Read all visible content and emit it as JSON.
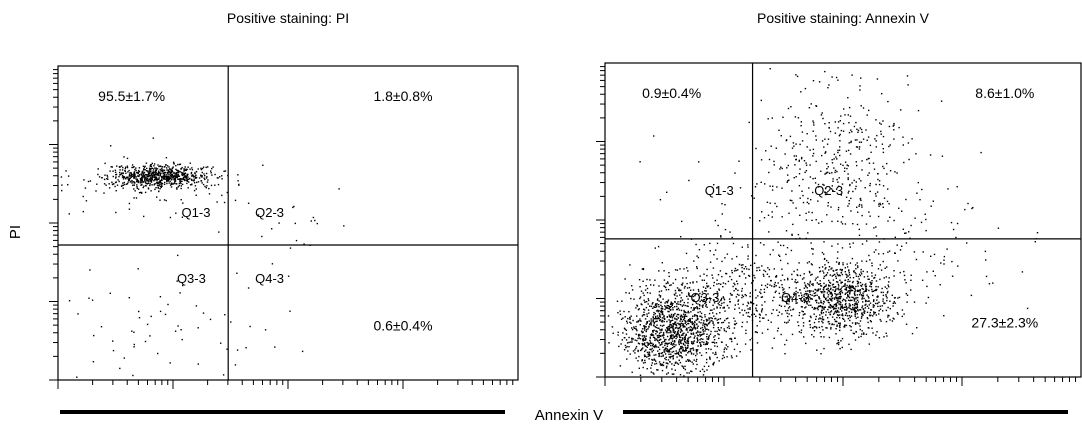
{
  "figure": {
    "ylabel": "PI",
    "xlabel": "Annexin V"
  },
  "colors": {
    "ink": "#000000",
    "background": "#ffffff"
  },
  "chart_data": [
    {
      "type": "scatter",
      "title": "Positive staining: PI",
      "xlabel": "Annexin V",
      "ylabel": "PI",
      "xlim": [
        0,
        1
      ],
      "ylim": [
        0,
        1
      ],
      "log_scale": true,
      "grid": false,
      "gate": {
        "x": 0.37,
        "y": 0.43
      },
      "quadrant_labels": [
        {
          "name": "Q1-3",
          "x": 0.3,
          "y": 0.53
        },
        {
          "name": "Q2-3",
          "x": 0.46,
          "y": 0.53
        },
        {
          "name": "Q3-3",
          "x": 0.29,
          "y": 0.32
        },
        {
          "name": "Q4-3",
          "x": 0.46,
          "y": 0.32
        }
      ],
      "annotations": [
        {
          "text": "95.5±1.7%",
          "x": 0.16,
          "y": 0.9
        },
        {
          "text": "1.8±0.8%",
          "x": 0.75,
          "y": 0.9
        },
        {
          "text": "0.6±0.4%",
          "x": 0.75,
          "y": 0.17
        },
        {
          "text": "",
          "x": 0,
          "y": 0
        }
      ],
      "clusters": [
        {
          "cx": 0.22,
          "cy": 0.65,
          "sx": 0.055,
          "sy": 0.018,
          "n": 700
        },
        {
          "cx": 0.2,
          "cy": 0.62,
          "sx": 0.12,
          "sy": 0.05,
          "n": 90
        },
        {
          "cx": 0.52,
          "cy": 0.5,
          "sx": 0.06,
          "sy": 0.06,
          "n": 20
        },
        {
          "cx": 0.25,
          "cy": 0.16,
          "sx": 0.15,
          "sy": 0.1,
          "n": 65
        }
      ]
    },
    {
      "type": "scatter",
      "title": "Positive staining: Annexin V",
      "xlabel": "Annexin V",
      "ylabel": "PI",
      "xlim": [
        0,
        1
      ],
      "ylim": [
        0,
        1
      ],
      "log_scale": true,
      "grid": false,
      "gate": {
        "x": 0.31,
        "y": 0.44
      },
      "quadrant_labels": [
        {
          "name": "Q1-3",
          "x": 0.24,
          "y": 0.59
        },
        {
          "name": "Q2-3",
          "x": 0.47,
          "y": 0.59
        },
        {
          "name": "Q3-3",
          "x": 0.21,
          "y": 0.25
        },
        {
          "name": "Q4-3",
          "x": 0.4,
          "y": 0.25
        }
      ],
      "annotations": [
        {
          "text": "0.9±0.4%",
          "x": 0.14,
          "y": 0.9
        },
        {
          "text": "8.6±1.0%",
          "x": 0.84,
          "y": 0.9
        },
        {
          "text": "27.3±2.3%",
          "x": 0.84,
          "y": 0.17
        }
      ],
      "clusters": [
        {
          "cx": 0.14,
          "cy": 0.14,
          "sx": 0.05,
          "sy": 0.065,
          "n": 1100
        },
        {
          "cx": 0.24,
          "cy": 0.26,
          "sx": 0.09,
          "sy": 0.08,
          "n": 500
        },
        {
          "cx": 0.5,
          "cy": 0.25,
          "sx": 0.055,
          "sy": 0.06,
          "n": 900
        },
        {
          "cx": 0.49,
          "cy": 0.68,
          "sx": 0.08,
          "sy": 0.13,
          "n": 380
        },
        {
          "cx": 0.36,
          "cy": 0.6,
          "sx": 0.12,
          "sy": 0.12,
          "n": 90
        },
        {
          "cx": 0.62,
          "cy": 0.4,
          "sx": 0.12,
          "sy": 0.1,
          "n": 120
        }
      ]
    }
  ]
}
